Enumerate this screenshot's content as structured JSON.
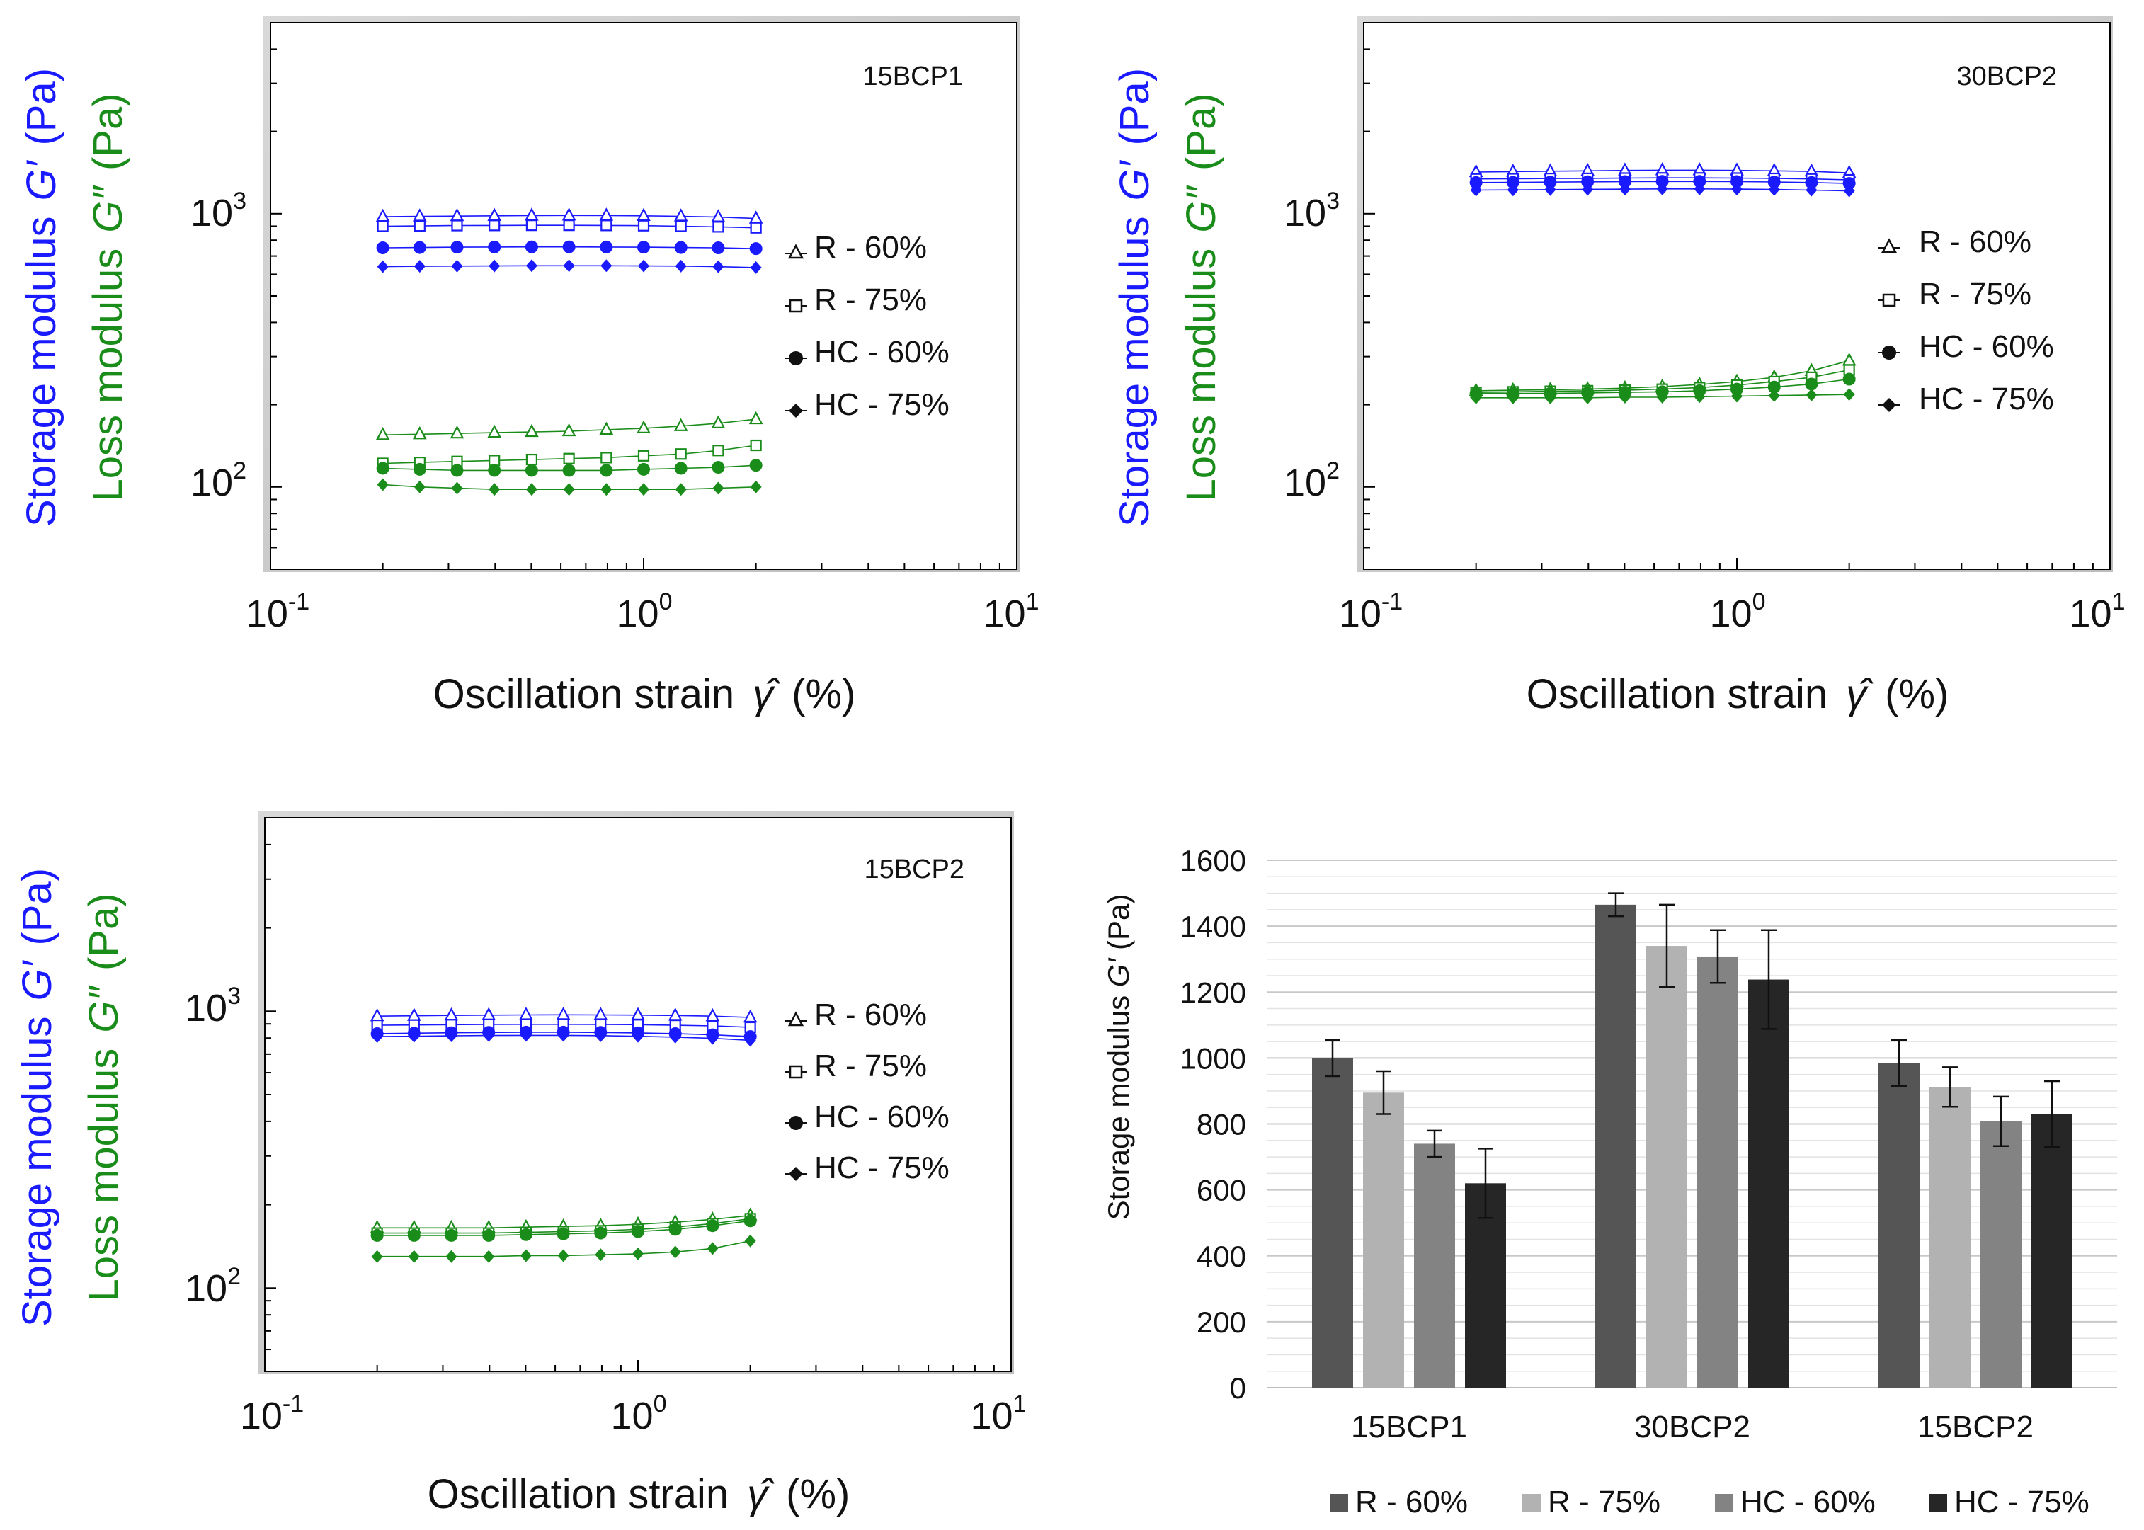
{
  "chart_data": [
    {
      "type": "scatter",
      "panel": "top-left",
      "title": "15BCP1",
      "xlabel": "Oscillation strain",
      "xlabel_symbol": "γ̂",
      "xlabel_unit": "(%)",
      "ylabel_storage_prefix": "Storage modulus",
      "ylabel_storage_symbol": "G′",
      "ylabel_storage_unit": "(Pa)",
      "ylabel_loss_prefix": "Loss modulus",
      "ylabel_loss_symbol": "G″",
      "ylabel_loss_unit": "(Pa)",
      "x_scale": "log",
      "y_scale": "log",
      "xlim": [
        0.1,
        10
      ],
      "ylim": [
        50,
        5000
      ],
      "x_ticks": [
        {
          "base": "10",
          "exp": "-1",
          "value": 0.1
        },
        {
          "base": "10",
          "exp": "0",
          "value": 1
        },
        {
          "base": "10",
          "exp": "1",
          "value": 10
        }
      ],
      "y_ticks": [
        {
          "base": "10",
          "exp": "2",
          "value": 100
        },
        {
          "base": "10",
          "exp": "3",
          "value": 1000
        }
      ],
      "legend": {
        "position": "right",
        "entries": [
          {
            "label": "R - 60%",
            "marker": "triangle-open"
          },
          {
            "label": "R - 75%",
            "marker": "square-open"
          },
          {
            "label": "HC - 60%",
            "marker": "circle-filled"
          },
          {
            "label": "HC - 75%",
            "marker": "diamond-filled"
          }
        ]
      },
      "x": [
        0.2,
        0.2512,
        0.3162,
        0.3981,
        0.5012,
        0.631,
        0.7943,
        1.0,
        1.2589,
        1.5849,
        2.0
      ],
      "series": [
        {
          "name": "R - 60%",
          "modulus": "storage",
          "marker": "triangle-open",
          "color": "#1a1aff",
          "values": [
            975,
            978,
            980,
            982,
            984,
            985,
            984,
            982,
            978,
            972,
            960
          ]
        },
        {
          "name": "R - 75%",
          "modulus": "storage",
          "marker": "square-open",
          "color": "#1a1aff",
          "values": [
            900,
            902,
            905,
            906,
            907,
            907,
            906,
            904,
            900,
            895,
            888
          ]
        },
        {
          "name": "HC - 60%",
          "modulus": "storage",
          "marker": "circle-filled",
          "color": "#1a1aff",
          "values": [
            750,
            752,
            754,
            755,
            756,
            756,
            755,
            754,
            752,
            750,
            745
          ]
        },
        {
          "name": "HC - 75%",
          "modulus": "storage",
          "marker": "diamond-filled",
          "color": "#1a1aff",
          "values": [
            640,
            642,
            643,
            644,
            645,
            645,
            645,
            644,
            643,
            640,
            635
          ]
        },
        {
          "name": "R - 60%",
          "modulus": "loss",
          "marker": "triangle-open",
          "color": "#1a8c1a",
          "values": [
            155,
            156,
            157,
            158,
            159,
            160,
            162,
            164,
            167,
            171,
            177
          ]
        },
        {
          "name": "R - 75%",
          "modulus": "loss",
          "marker": "square-open",
          "color": "#1a8c1a",
          "values": [
            122,
            123,
            124,
            125,
            126,
            127,
            128,
            130,
            132,
            136,
            142
          ]
        },
        {
          "name": "HC - 60%",
          "modulus": "loss",
          "marker": "circle-filled",
          "color": "#1a8c1a",
          "values": [
            117,
            116,
            115,
            115,
            115,
            115,
            115,
            116,
            117,
            118,
            120
          ]
        },
        {
          "name": "HC - 75%",
          "modulus": "loss",
          "marker": "diamond-filled",
          "color": "#1a8c1a",
          "values": [
            102,
            100,
            99,
            98,
            98,
            98,
            98,
            98,
            98,
            99,
            100
          ]
        }
      ]
    },
    {
      "type": "scatter",
      "panel": "top-right",
      "title": "30BCP2",
      "xlabel": "Oscillation strain",
      "xlabel_symbol": "γ̂",
      "xlabel_unit": "(%)",
      "ylabel_storage_prefix": "Storage modulus",
      "ylabel_storage_symbol": "G′",
      "ylabel_storage_unit": "(Pa)",
      "ylabel_loss_prefix": "Loss modulus",
      "ylabel_loss_symbol": "G″",
      "ylabel_loss_unit": "(Pa)",
      "x_scale": "log",
      "y_scale": "log",
      "xlim": [
        0.1,
        10
      ],
      "ylim": [
        50,
        5000
      ],
      "x_ticks": [
        {
          "base": "10",
          "exp": "-1",
          "value": 0.1
        },
        {
          "base": "10",
          "exp": "0",
          "value": 1
        },
        {
          "base": "10",
          "exp": "1",
          "value": 10
        }
      ],
      "y_ticks": [
        {
          "base": "10",
          "exp": "2",
          "value": 100
        },
        {
          "base": "10",
          "exp": "3",
          "value": 1000
        }
      ],
      "legend": {
        "position": "right",
        "entries": [
          {
            "label": "R - 60%",
            "marker": "triangle-open"
          },
          {
            "label": "R - 75%",
            "marker": "square-open"
          },
          {
            "label": "HC - 60%",
            "marker": "circle-filled"
          },
          {
            "label": "HC - 75%",
            "marker": "diamond-filled"
          }
        ]
      },
      "x": [
        0.2,
        0.2512,
        0.3162,
        0.3981,
        0.5012,
        0.631,
        0.7943,
        1.0,
        1.2589,
        1.5849,
        2.0
      ],
      "series": [
        {
          "name": "R - 60%",
          "modulus": "storage",
          "marker": "triangle-open",
          "color": "#1a1aff",
          "values": [
            1420,
            1425,
            1430,
            1435,
            1440,
            1442,
            1442,
            1440,
            1435,
            1428,
            1410
          ]
        },
        {
          "name": "R - 75%",
          "modulus": "storage",
          "marker": "square-open",
          "color": "#1a1aff",
          "values": [
            1340,
            1342,
            1345,
            1347,
            1350,
            1352,
            1352,
            1350,
            1346,
            1340,
            1330
          ]
        },
        {
          "name": "HC - 60%",
          "modulus": "storage",
          "marker": "circle-filled",
          "color": "#1a1aff",
          "values": [
            1300,
            1302,
            1305,
            1308,
            1310,
            1312,
            1312,
            1310,
            1306,
            1300,
            1290
          ]
        },
        {
          "name": "HC - 75%",
          "modulus": "storage",
          "marker": "diamond-filled",
          "color": "#1a1aff",
          "values": [
            1220,
            1222,
            1225,
            1228,
            1230,
            1232,
            1232,
            1230,
            1226,
            1220,
            1212
          ]
        },
        {
          "name": "R - 60%",
          "modulus": "loss",
          "marker": "triangle-open",
          "color": "#1a8c1a",
          "values": [
            225,
            226,
            227,
            228,
            230,
            233,
            237,
            243,
            252,
            266,
            290
          ]
        },
        {
          "name": "R - 75%",
          "modulus": "loss",
          "marker": "square-open",
          "color": "#1a8c1a",
          "values": [
            222,
            223,
            224,
            225,
            226,
            228,
            231,
            236,
            243,
            252,
            268
          ]
        },
        {
          "name": "HC - 60%",
          "modulus": "loss",
          "marker": "circle-filled",
          "color": "#1a8c1a",
          "values": [
            220,
            220,
            220,
            221,
            222,
            223,
            225,
            228,
            232,
            238,
            248
          ]
        },
        {
          "name": "HC - 75%",
          "modulus": "loss",
          "marker": "diamond-filled",
          "color": "#1a8c1a",
          "values": [
            212,
            212,
            212,
            212,
            213,
            213,
            214,
            215,
            216,
            217,
            218
          ]
        }
      ]
    },
    {
      "type": "scatter",
      "panel": "bottom-left",
      "title": "15BCP2",
      "xlabel": "Oscillation strain",
      "xlabel_symbol": "γ̂",
      "xlabel_unit": "(%)",
      "ylabel_storage_prefix": "Storage modulus",
      "ylabel_storage_symbol": "G′",
      "ylabel_storage_unit": "(Pa)",
      "ylabel_loss_prefix": "Loss modulus",
      "ylabel_loss_symbol": "G″",
      "ylabel_loss_unit": "(Pa)",
      "x_scale": "log",
      "y_scale": "log",
      "xlim": [
        0.1,
        10
      ],
      "ylim": [
        50,
        5000
      ],
      "x_ticks": [
        {
          "base": "10",
          "exp": "-1",
          "value": 0.1
        },
        {
          "base": "10",
          "exp": "0",
          "value": 1
        },
        {
          "base": "10",
          "exp": "1",
          "value": 10
        }
      ],
      "y_ticks": [
        {
          "base": "10",
          "exp": "2",
          "value": 100
        },
        {
          "base": "10",
          "exp": "3",
          "value": 1000
        }
      ],
      "legend": {
        "position": "right",
        "entries": [
          {
            "label": "R - 60%",
            "marker": "triangle-open"
          },
          {
            "label": "R - 75%",
            "marker": "square-open"
          },
          {
            "label": "HC - 60%",
            "marker": "circle-filled"
          },
          {
            "label": "HC - 75%",
            "marker": "diamond-filled"
          }
        ]
      },
      "x": [
        0.2,
        0.2512,
        0.3162,
        0.3981,
        0.5012,
        0.631,
        0.7943,
        1.0,
        1.2589,
        1.5849,
        2.0
      ],
      "series": [
        {
          "name": "R - 60%",
          "modulus": "storage",
          "marker": "triangle-open",
          "color": "#1a1aff",
          "values": [
            960,
            963,
            966,
            968,
            970,
            971,
            970,
            968,
            965,
            960,
            950
          ]
        },
        {
          "name": "R - 75%",
          "modulus": "storage",
          "marker": "square-open",
          "color": "#1a1aff",
          "values": [
            890,
            892,
            894,
            896,
            897,
            897,
            896,
            894,
            890,
            885,
            875
          ]
        },
        {
          "name": "HC - 60%",
          "modulus": "storage",
          "marker": "circle-filled",
          "color": "#1a1aff",
          "values": [
            830,
            833,
            836,
            838,
            840,
            840,
            838,
            835,
            830,
            822,
            810
          ]
        },
        {
          "name": "HC - 75%",
          "modulus": "storage",
          "marker": "diamond-filled",
          "color": "#1a1aff",
          "values": [
            810,
            812,
            815,
            817,
            818,
            818,
            816,
            812,
            806,
            798,
            785
          ]
        },
        {
          "name": "R - 60%",
          "modulus": "loss",
          "marker": "triangle-open",
          "color": "#1a8c1a",
          "values": [
            165,
            165,
            165,
            165,
            166,
            167,
            168,
            170,
            173,
            177,
            183
          ]
        },
        {
          "name": "R - 75%",
          "modulus": "loss",
          "marker": "square-open",
          "color": "#1a8c1a",
          "values": [
            158,
            158,
            158,
            158,
            159,
            160,
            161,
            163,
            166,
            171,
            178
          ]
        },
        {
          "name": "HC - 60%",
          "modulus": "loss",
          "marker": "circle-filled",
          "color": "#1a8c1a",
          "values": [
            155,
            155,
            155,
            155,
            156,
            157,
            158,
            160,
            163,
            168,
            175
          ]
        },
        {
          "name": "HC - 75%",
          "modulus": "loss",
          "marker": "diamond-filled",
          "color": "#1a8c1a",
          "values": [
            130,
            130,
            130,
            130,
            131,
            131,
            132,
            133,
            135,
            139,
            148
          ]
        }
      ]
    },
    {
      "type": "bar",
      "panel": "bottom-right",
      "title": "",
      "xlabel": "",
      "ylabel": "Storage modulus G′ (Pa)",
      "ylabel_prefix": "Storage modulus ",
      "ylabel_symbol": "G′",
      "ylabel_unit": " (Pa)",
      "ylim": [
        0,
        1600
      ],
      "y_ticks": [
        "0",
        "200",
        "400",
        "600",
        "800",
        "1000",
        "1200",
        "1400",
        "1600"
      ],
      "minor_gridlines": true,
      "legend": {
        "position": "bottom"
      },
      "categories": [
        "15BCP1",
        "30BCP2",
        "15BCP2"
      ],
      "series": [
        {
          "name": "R - 60%",
          "color": "#555555",
          "values": [
            1000,
            1465,
            985
          ],
          "errors": [
            55,
            35,
            70
          ]
        },
        {
          "name": "R - 75%",
          "color": "#b2b2b2",
          "values": [
            895,
            1340,
            912
          ],
          "errors": [
            65,
            125,
            60
          ]
        },
        {
          "name": "HC - 60%",
          "color": "#838383",
          "values": [
            740,
            1308,
            808
          ],
          "errors": [
            40,
            80,
            75
          ]
        },
        {
          "name": "HC - 75%",
          "color": "#262626",
          "values": [
            620,
            1238,
            830
          ],
          "errors": [
            105,
            150,
            100
          ]
        }
      ]
    }
  ]
}
